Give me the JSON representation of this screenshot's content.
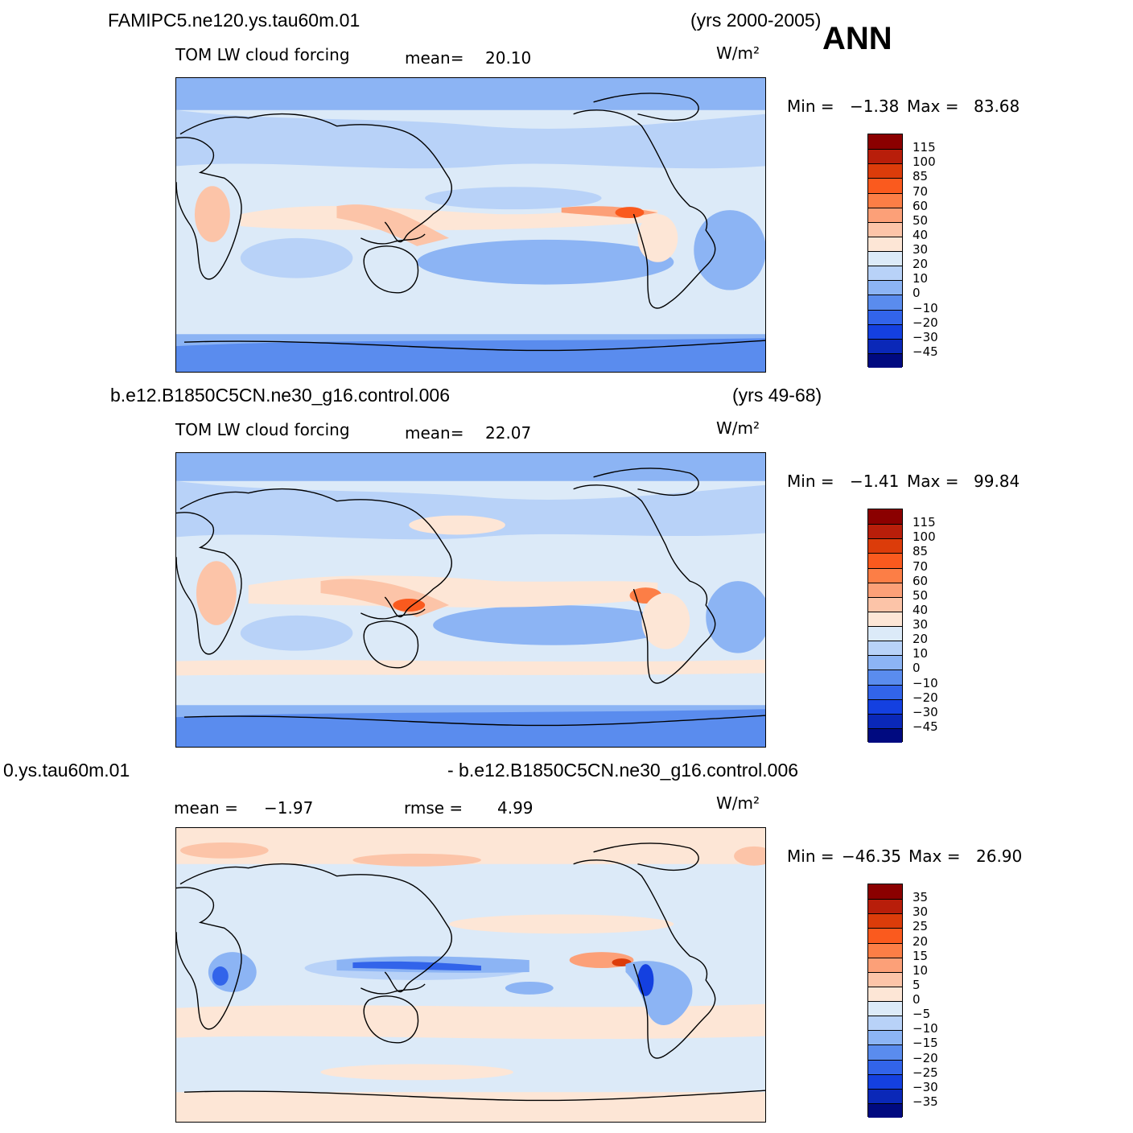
{
  "season": "ANN",
  "panels": [
    {
      "case": "FAMIPC5.ne120.ys.tau60m.01",
      "years": "(yrs 2000-2005)",
      "variable": "TOM LW cloud forcing",
      "stat1_label": "mean=",
      "stat1_value": "20.10",
      "stat2_label": "",
      "stat2_value": "",
      "units": "W/m²",
      "min_label": "Min =",
      "min_value": "−1.38",
      "max_label": "Max =",
      "max_value": "83.68",
      "colorbar": {
        "labels": [
          "115",
          "100",
          "85",
          "70",
          "60",
          "50",
          "40",
          "30",
          "20",
          "10",
          "0",
          "−10",
          "−20",
          "−30",
          "−45"
        ],
        "colors": [
          "#8b0000",
          "#b81e0a",
          "#dc3c0a",
          "#fa5a1e",
          "#fc7e46",
          "#fca078",
          "#fcc4a8",
          "#fde6d6",
          "#dceaf8",
          "#b8d2f8",
          "#8cb4f4",
          "#5a8cee",
          "#3264ea",
          "#1440e0",
          "#0a28b8",
          "#000a80"
        ]
      }
    },
    {
      "case": "b.e12.B1850C5CN.ne30_g16.control.006",
      "years": "(yrs 49-68)",
      "variable": "TOM LW cloud forcing",
      "stat1_label": "mean=",
      "stat1_value": "22.07",
      "stat2_label": "",
      "stat2_value": "",
      "units": "W/m²",
      "min_label": "Min =",
      "min_value": "−1.41",
      "max_label": "Max =",
      "max_value": "99.84",
      "colorbar": {
        "labels": [
          "115",
          "100",
          "85",
          "70",
          "60",
          "50",
          "40",
          "30",
          "20",
          "10",
          "0",
          "−10",
          "−20",
          "−30",
          "−45"
        ],
        "colors": [
          "#8b0000",
          "#b81e0a",
          "#dc3c0a",
          "#fa5a1e",
          "#fc7e46",
          "#fca078",
          "#fcc4a8",
          "#fde6d6",
          "#dceaf8",
          "#b8d2f8",
          "#8cb4f4",
          "#5a8cee",
          "#3264ea",
          "#1440e0",
          "#0a28b8",
          "#000a80"
        ]
      }
    },
    {
      "case_left": "0.ys.tau60m.01",
      "case_right": "- b.e12.B1850C5CN.ne30_g16.control.006",
      "stat1_label": "mean =",
      "stat1_value": "−1.97",
      "stat2_label": "rmse =",
      "stat2_value": "4.99",
      "units": "W/m²",
      "min_label": "Min =",
      "min_value": "−46.35",
      "max_label": "Max =",
      "max_value": "26.90",
      "colorbar": {
        "labels": [
          "35",
          "30",
          "25",
          "20",
          "15",
          "10",
          "5",
          "0",
          "−5",
          "−10",
          "−15",
          "−20",
          "−25",
          "−30",
          "−35"
        ],
        "colors": [
          "#8b0000",
          "#b81e0a",
          "#dc3c0a",
          "#fa5a1e",
          "#fc7e46",
          "#fca078",
          "#fcc4a8",
          "#fde6d6",
          "#dceaf8",
          "#b8d2f8",
          "#8cb4f4",
          "#5a8cee",
          "#3264ea",
          "#1440e0",
          "#0a28b8",
          "#000a80"
        ]
      }
    }
  ]
}
